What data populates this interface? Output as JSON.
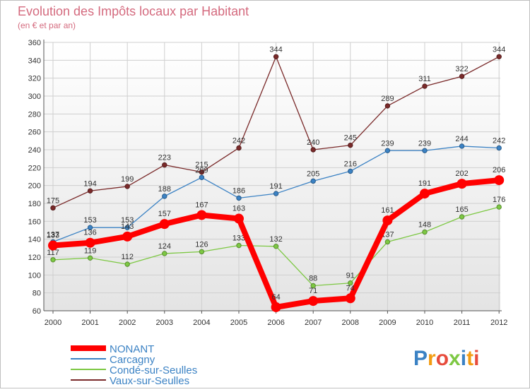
{
  "chart_data": {
    "type": "line",
    "title": "Evolution des Impôts locaux par Habitant",
    "subtitle": "(en € et par an)",
    "xlabel": "",
    "ylabel": "",
    "categories": [
      "2000",
      "2001",
      "2002",
      "2003",
      "2004",
      "2005",
      "2006",
      "2007",
      "2008",
      "2009",
      "2010",
      "2011",
      "2012"
    ],
    "ylim": [
      60,
      360
    ],
    "yticks": [
      60,
      80,
      100,
      120,
      140,
      160,
      180,
      200,
      220,
      240,
      260,
      280,
      300,
      320,
      340,
      360
    ],
    "grid": true,
    "legend_position": "bottom-left",
    "series": [
      {
        "name": "Vaux-sur-Seulles",
        "color": "#7a2a2a",
        "values": [
          175,
          194,
          199,
          223,
          215,
          242,
          344,
          240,
          245,
          289,
          311,
          322,
          344
        ]
      },
      {
        "name": "Carcagny",
        "color": "#3b82c4",
        "values": [
          137,
          153,
          153,
          188,
          209,
          186,
          191,
          205,
          216,
          239,
          239,
          244,
          242
        ]
      },
      {
        "name": "Condé-sur-Seulles",
        "color": "#7dc843",
        "values": [
          117,
          119,
          112,
          124,
          126,
          133,
          132,
          88,
          91,
          137,
          148,
          165,
          176
        ]
      },
      {
        "name": "NONANT",
        "color": "#ff0000",
        "values": [
          133,
          136,
          143,
          157,
          167,
          163,
          64,
          71,
          74,
          161,
          191,
          202,
          206
        ]
      }
    ]
  },
  "legend_order": [
    "NONANT",
    "Carcagny",
    "Condé-sur-Seulles",
    "Vaux-sur-Seulles"
  ],
  "brand": {
    "text": "Proxiti"
  }
}
